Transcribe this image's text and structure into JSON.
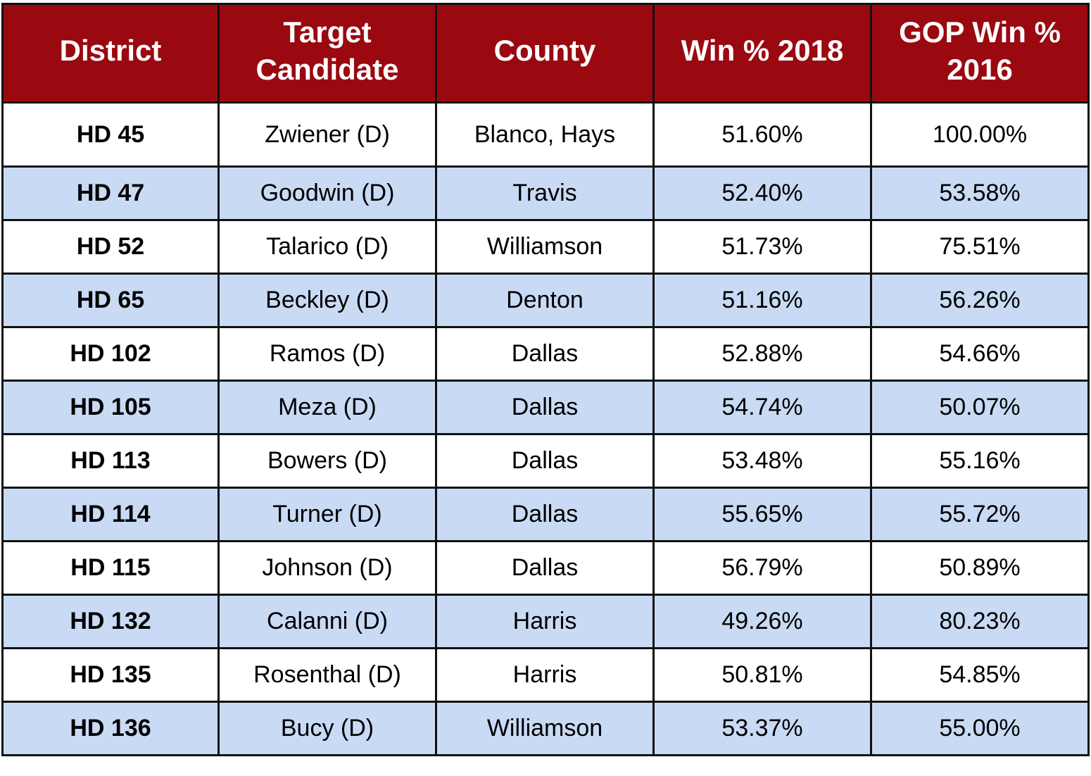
{
  "columns": [
    "District",
    "Target Candidate",
    "County",
    "Win % 2018",
    "GOP Win % 2016"
  ],
  "rows": [
    [
      "HD 45",
      "Zwiener (D)",
      "Blanco, Hays",
      "51.60%",
      "100.00%"
    ],
    [
      "HD 47",
      "Goodwin (D)",
      "Travis",
      "52.40%",
      "53.58%"
    ],
    [
      "HD 52",
      "Talarico (D)",
      "Williamson",
      "51.73%",
      "75.51%"
    ],
    [
      "HD 65",
      "Beckley (D)",
      "Denton",
      "51.16%",
      "56.26%"
    ],
    [
      "HD 102",
      "Ramos (D)",
      "Dallas",
      "52.88%",
      "54.66%"
    ],
    [
      "HD 105",
      "Meza (D)",
      "Dallas",
      "54.74%",
      "50.07%"
    ],
    [
      "HD 113",
      "Bowers (D)",
      "Dallas",
      "53.48%",
      "55.16%"
    ],
    [
      "HD 114",
      "Turner (D)",
      "Dallas",
      "55.65%",
      "55.72%"
    ],
    [
      "HD 115",
      "Johnson (D)",
      "Dallas",
      "56.79%",
      "50.89%"
    ],
    [
      "HD 132",
      "Calanni (D)",
      "Harris",
      "49.26%",
      "80.23%"
    ],
    [
      "HD 135",
      "Rosenthal (D)",
      "Harris",
      "50.81%",
      "54.85%"
    ],
    [
      "HD 136",
      "Bucy (D)",
      "Williamson",
      "53.37%",
      "55.00%"
    ]
  ],
  "colors": {
    "header_background": "#9a0810",
    "header_text": "#ffffff",
    "alternate_row": "#c9daf4",
    "border": "#111111"
  }
}
